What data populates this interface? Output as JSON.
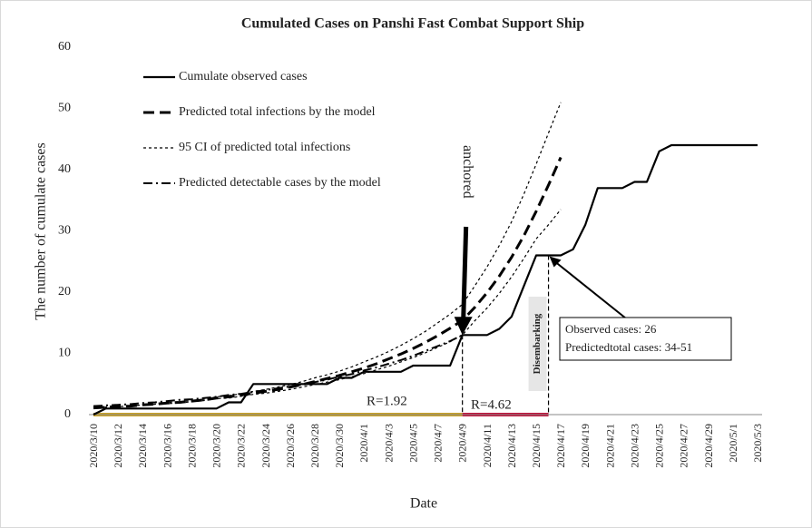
{
  "chart_data": {
    "type": "line",
    "title": "Cumulated Cases on Panshi Fast Combat Support Ship",
    "xlabel": "Date",
    "ylabel": "The number of cumulate cases",
    "legend": "upper left",
    "ylim": [
      0,
      60
    ],
    "yticks": [
      0,
      10,
      20,
      30,
      40,
      50,
      60
    ],
    "categories": [
      "2020/3/10",
      null,
      "2020/3/12",
      null,
      "2020/3/14",
      null,
      "2020/3/16",
      null,
      "2020/3/18",
      null,
      "2020/3/20",
      null,
      "2020/3/22",
      null,
      "2020/3/24",
      null,
      "2020/3/26",
      null,
      "2020/3/28",
      null,
      "2020/3/30",
      null,
      "2020/4/1",
      null,
      "2020/4/3",
      null,
      "2020/4/5",
      null,
      "2020/4/7",
      null,
      "2020/4/9",
      null,
      "2020/4/11",
      null,
      "2020/4/13",
      null,
      "2020/4/15",
      null,
      "2020/4/17",
      null,
      "2020/4/19",
      null,
      "2020/4/21",
      null,
      "2020/4/23",
      null,
      "2020/4/25",
      null,
      "2020/4/27",
      null,
      "2020/4/29",
      null,
      "2020/5/1",
      null,
      "2020/5/3"
    ],
    "series": [
      {
        "name": "Cumulate observed cases",
        "color": "#000000",
        "dash": "solid",
        "values": [
          0,
          1,
          1,
          1,
          1,
          1,
          1,
          1,
          1,
          1,
          1,
          2,
          2,
          5,
          5,
          5,
          5,
          5,
          5,
          5,
          6,
          6,
          7,
          7,
          7,
          7,
          8,
          8,
          8,
          8,
          13,
          13,
          13,
          14,
          16,
          21,
          26,
          26,
          26,
          27,
          31,
          37,
          37,
          37,
          38,
          38,
          43,
          44,
          44,
          44,
          44,
          44,
          44,
          44,
          44
        ]
      },
      {
        "name": "Predicted total  infections by the model",
        "color": "#000000",
        "dash": "dashed",
        "values": [
          1.1,
          1.2,
          1.3,
          1.4,
          1.6,
          1.7,
          1.9,
          2.0,
          2.2,
          2.4,
          2.7,
          2.9,
          3.2,
          3.5,
          3.8,
          4.1,
          4.5,
          4.9,
          5.4,
          5.9,
          6.4,
          7.0,
          7.6,
          8.3,
          9.1,
          9.9,
          10.8,
          11.8,
          12.9,
          14.1,
          15.4,
          17.5,
          19.9,
          22.6,
          25.7,
          29.2,
          33.2,
          37.5,
          42.0,
          null,
          null,
          null,
          null,
          null,
          null,
          null,
          null,
          null,
          null,
          null,
          null,
          null,
          null,
          null,
          null
        ]
      },
      {
        "name": "95 CI of predicted total infections",
        "color": "#000000",
        "dash": "dotted",
        "values": [
          1.1,
          1.2,
          1.3,
          1.4,
          1.6,
          1.7,
          2.0,
          2.1,
          2.3,
          2.5,
          2.9,
          3.1,
          3.4,
          3.8,
          4.1,
          4.5,
          4.9,
          5.4,
          6.0,
          6.5,
          7.1,
          7.8,
          8.6,
          9.4,
          10.3,
          11.3,
          12.4,
          13.6,
          15.0,
          16.4,
          18.0,
          21.0,
          24.1,
          27.6,
          31.5,
          36.0,
          40.9,
          46.0,
          51.0,
          null,
          null,
          null,
          null,
          null,
          null,
          null,
          null,
          null,
          null,
          null,
          null,
          null,
          null,
          null,
          null
        ]
      },
      {
        "name": null,
        "color": "#000000",
        "dash": "dotted",
        "values": [
          1.1,
          1.2,
          1.3,
          1.4,
          1.6,
          1.7,
          1.8,
          1.9,
          2.1,
          2.3,
          2.6,
          2.7,
          3.0,
          3.3,
          3.5,
          3.8,
          4.1,
          4.5,
          4.9,
          5.3,
          5.7,
          6.2,
          6.7,
          7.3,
          7.9,
          8.6,
          9.3,
          10.1,
          11.0,
          11.9,
          13.0,
          15.3,
          17.4,
          19.8,
          22.5,
          25.5,
          28.7,
          31.0,
          33.5,
          null,
          null,
          null,
          null,
          null,
          null,
          null,
          null,
          null,
          null,
          null,
          null,
          null,
          null,
          null,
          null
        ]
      },
      {
        "name": "Predicted detectable cases by the model",
        "color": "#000000",
        "dash": "dashdot",
        "values": [
          1.4,
          1.5,
          1.6,
          1.7,
          1.9,
          2.0,
          2.2,
          2.4,
          2.5,
          2.7,
          2.9,
          3.2,
          3.4,
          3.7,
          4.0,
          4.3,
          4.6,
          4.9,
          5.3,
          5.7,
          6.2,
          6.6,
          7.2,
          7.7,
          8.3,
          8.9,
          9.6,
          10.4,
          11.2,
          12.0,
          13.0,
          null,
          null,
          null,
          null,
          null,
          null,
          null,
          null,
          null,
          null,
          null,
          null,
          null,
          null,
          null,
          null,
          null,
          null,
          null,
          null,
          null,
          null,
          null,
          null
        ]
      }
    ],
    "annotations": [
      "anchored",
      "Disembarking",
      "Observed cases: 26",
      "Predictedtotal cases: 34-51",
      "R=1.92",
      "R=4.62"
    ]
  }
}
